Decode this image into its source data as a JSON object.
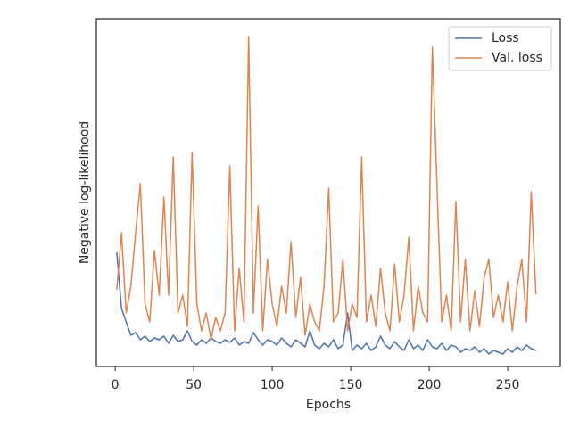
{
  "chart_data": {
    "type": "line",
    "xlabel": "Epochs",
    "ylabel": "Negative log-likelihood",
    "x": [
      1,
      4,
      7,
      10,
      13,
      16,
      19,
      22,
      25,
      28,
      31,
      34,
      37,
      40,
      43,
      46,
      49,
      52,
      55,
      58,
      61,
      64,
      67,
      70,
      73,
      76,
      79,
      82,
      85,
      88,
      91,
      94,
      97,
      100,
      103,
      106,
      109,
      112,
      115,
      118,
      121,
      124,
      127,
      130,
      133,
      136,
      139,
      142,
      145,
      148,
      151,
      154,
      157,
      160,
      163,
      166,
      169,
      172,
      175,
      178,
      181,
      184,
      187,
      190,
      193,
      196,
      199,
      202,
      205,
      208,
      211,
      214,
      217,
      220,
      223,
      226,
      229,
      232,
      235,
      238,
      241,
      244,
      247,
      250,
      253,
      256,
      259,
      262,
      265,
      268
    ],
    "series": [
      {
        "name": "Loss",
        "color": "#4c72b0",
        "values": [
          128,
          65,
          50,
          35,
          38,
          30,
          34,
          28,
          32,
          30,
          34,
          26,
          35,
          28,
          30,
          40,
          28,
          24,
          30,
          26,
          32,
          28,
          26,
          30,
          27,
          32,
          24,
          28,
          26,
          38,
          30,
          24,
          30,
          28,
          24,
          32,
          26,
          22,
          30,
          26,
          22,
          40,
          24,
          20,
          26,
          22,
          30,
          20,
          24,
          60,
          18,
          24,
          20,
          26,
          18,
          22,
          34,
          24,
          20,
          28,
          22,
          18,
          30,
          20,
          24,
          18,
          30,
          22,
          20,
          26,
          18,
          24,
          22,
          16,
          20,
          18,
          22,
          16,
          20,
          14,
          18,
          16,
          14,
          20,
          16,
          22,
          18,
          24,
          20,
          18
        ]
      },
      {
        "name": "Val. loss",
        "color": "#dd8452",
        "values": [
          86,
          150,
          60,
          90,
          150,
          205,
          70,
          50,
          130,
          80,
          190,
          80,
          235,
          60,
          80,
          45,
          240,
          70,
          40,
          60,
          30,
          55,
          40,
          60,
          225,
          40,
          110,
          50,
          370,
          60,
          180,
          40,
          120,
          70,
          45,
          90,
          60,
          140,
          55,
          100,
          35,
          70,
          50,
          40,
          90,
          200,
          50,
          60,
          120,
          40,
          70,
          55,
          235,
          50,
          80,
          45,
          110,
          60,
          40,
          115,
          50,
          80,
          145,
          40,
          90,
          60,
          50,
          358,
          200,
          50,
          80,
          40,
          185,
          50,
          120,
          40,
          85,
          45,
          100,
          120,
          55,
          80,
          50,
          95,
          40,
          90,
          120,
          50,
          196,
          81
        ]
      }
    ],
    "xlim": [
      -12,
      283.5
    ],
    "xticks": [
      0,
      50,
      100,
      150,
      200,
      250
    ],
    "ylim": [
      0,
      390
    ],
    "legend": "upper right"
  }
}
